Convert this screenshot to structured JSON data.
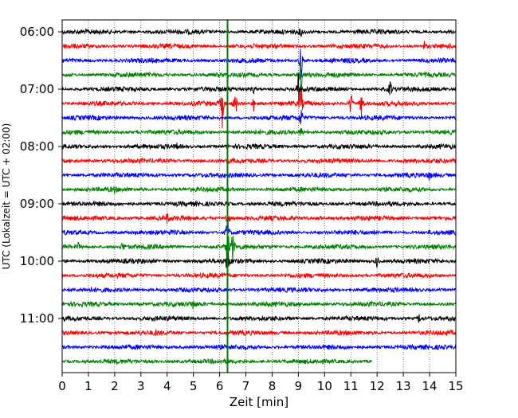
{
  "chart_data": {
    "type": "line",
    "subtype": "helicorder",
    "xlabel": "Zeit  [min]",
    "ylabel": "UTC (Lokalzeit = UTC + 02:00)",
    "xlim": [
      0,
      15
    ],
    "xticks": [
      0,
      1,
      2,
      3,
      4,
      5,
      6,
      7,
      8,
      9,
      10,
      11,
      12,
      13,
      14,
      15
    ],
    "grid_x": true,
    "minutes_per_trace": 15,
    "start_time": "06:00",
    "y_tick_labels": [
      "06:00",
      "07:00",
      "08:00",
      "09:00",
      "10:00",
      "11:00"
    ],
    "y_tick_trace_index": [
      0,
      4,
      8,
      12,
      16,
      20
    ],
    "trace_colors": [
      "#000000",
      "#ff0000",
      "#0000ff",
      "#008000"
    ],
    "trace_count": 24,
    "last_trace_end_min": 11.8,
    "marker_line": {
      "x_min": 6.3,
      "color": "#008000"
    },
    "events": [
      {
        "trace": 0,
        "x": 9.1,
        "amp": 0.4
      },
      {
        "trace": 1,
        "x": 13.8,
        "amp": 0.35
      },
      {
        "trace": 2,
        "x": 9.1,
        "amp": 1.6
      },
      {
        "trace": 3,
        "x": 9.1,
        "amp": 2.0
      },
      {
        "trace": 4,
        "x": 9.0,
        "amp": 1.2
      },
      {
        "trace": 4,
        "x": 7.3,
        "amp": 0.3
      },
      {
        "trace": 4,
        "x": 12.5,
        "amp": 0.8
      },
      {
        "trace": 5,
        "x": 6.1,
        "amp": 1.8
      },
      {
        "trace": 5,
        "x": 6.6,
        "amp": 1.4
      },
      {
        "trace": 5,
        "x": 7.3,
        "amp": 0.6
      },
      {
        "trace": 5,
        "x": 11.0,
        "amp": 1.3
      },
      {
        "trace": 5,
        "x": 11.4,
        "amp": 1.5
      },
      {
        "trace": 5,
        "x": 9.1,
        "amp": 1.4
      },
      {
        "trace": 6,
        "x": 9.1,
        "amp": 1.0
      },
      {
        "trace": 7,
        "x": 9.1,
        "amp": 0.5
      },
      {
        "trace": 8,
        "x": 4.4,
        "amp": 0.3
      },
      {
        "trace": 10,
        "x": 14.0,
        "amp": 0.35
      },
      {
        "trace": 11,
        "x": 2.0,
        "amp": 0.2
      },
      {
        "trace": 12,
        "x": 6.3,
        "amp": 0.4
      },
      {
        "trace": 13,
        "x": 4.0,
        "amp": 0.35
      },
      {
        "trace": 13,
        "x": 9.8,
        "amp": 0.3
      },
      {
        "trace": 13,
        "x": 6.3,
        "amp": 1.0
      },
      {
        "trace": 14,
        "x": 6.3,
        "amp": 1.6
      },
      {
        "trace": 15,
        "x": 0.6,
        "amp": 0.4
      },
      {
        "trace": 15,
        "x": 2.3,
        "amp": 0.4
      },
      {
        "trace": 15,
        "x": 6.3,
        "amp": 2.2
      },
      {
        "trace": 15,
        "x": 6.5,
        "amp": 1.4
      },
      {
        "trace": 16,
        "x": 12.0,
        "amp": 0.6
      },
      {
        "trace": 16,
        "x": 6.3,
        "amp": 1.4
      },
      {
        "trace": 19,
        "x": 5.0,
        "amp": 0.45
      },
      {
        "trace": 20,
        "x": 13.6,
        "amp": 0.35
      },
      {
        "trace": 21,
        "x": 3.6,
        "amp": 0.2
      }
    ]
  }
}
